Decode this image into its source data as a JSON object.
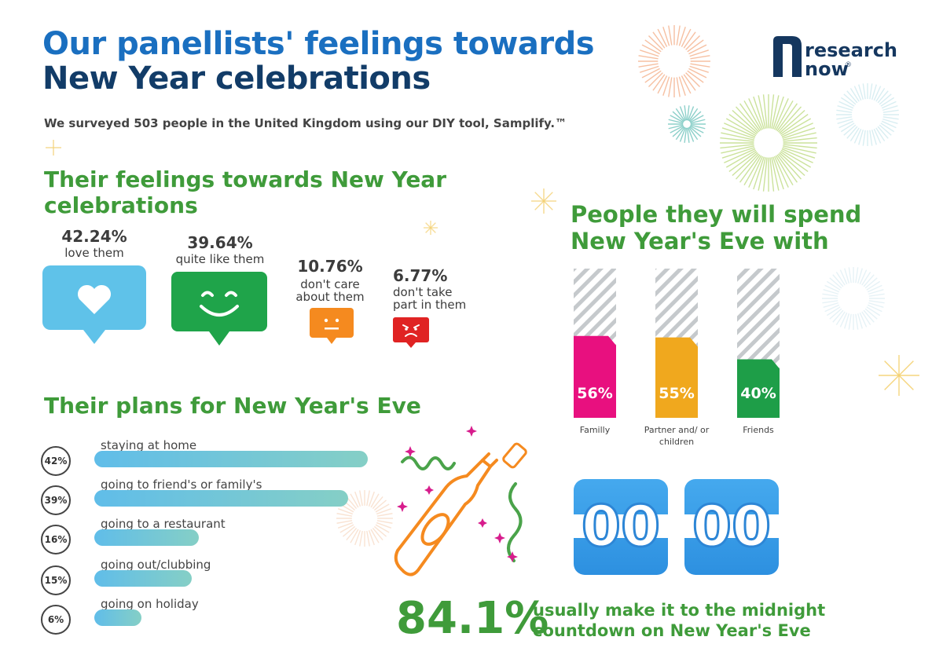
{
  "header": {
    "title_line1": "Our panellists' feelings towards",
    "title_line2": "New Year celebrations",
    "subtitle": "We surveyed 503 people in the United Kingdom using our DIY tool, Samplify.™"
  },
  "logo": {
    "word1": "research",
    "word2": "now",
    "mark": "®"
  },
  "feelings": {
    "heading": "Their feelings towards New Year celebrations",
    "items": [
      {
        "pct": "42.24%",
        "label": "love them",
        "icon": "heart-icon",
        "color": "#5fc2e9"
      },
      {
        "pct": "39.64%",
        "label": "quite like them",
        "icon": "smile-icon",
        "color": "#1fa44a"
      },
      {
        "pct": "10.76%",
        "label": "don't care about them",
        "icon": "neutral-face-icon",
        "color": "#f58a1f"
      },
      {
        "pct": "6.77%",
        "label": "don't take part in them",
        "icon": "angry-face-icon",
        "color": "#e02323"
      }
    ]
  },
  "plans": {
    "heading": "Their plans for New Year's Eve",
    "items": [
      {
        "pct_label": "42%",
        "value": 42,
        "label": "staying at home"
      },
      {
        "pct_label": "39%",
        "value": 39,
        "label": "going to friend's or family's"
      },
      {
        "pct_label": "16%",
        "value": 16,
        "label": "going to a restaurant"
      },
      {
        "pct_label": "15%",
        "value": 15,
        "label": "going out/clubbing"
      },
      {
        "pct_label": "6%",
        "value": 6,
        "label": "going on holiday"
      }
    ]
  },
  "company": {
    "heading": "People they will spend New Year's Eve with",
    "items": [
      {
        "pct_label": "56%",
        "value": 56,
        "label": "Familly",
        "color": "#e8107f"
      },
      {
        "pct_label": "55%",
        "value": 55,
        "label": "Partner and/ or children",
        "color": "#f0a81e"
      },
      {
        "pct_label": "40%",
        "value": 40,
        "label": "Friends",
        "color": "#1e9e48"
      }
    ]
  },
  "countdown": {
    "digits": [
      "00",
      "00"
    ],
    "stat": "84.1%",
    "text": "usually make it to the midnight countdown on New Year's Eve"
  },
  "chart_data": [
    {
      "type": "bar",
      "title": "Their feelings towards New Year celebrations",
      "categories": [
        "love them",
        "quite like them",
        "don't care about them",
        "don't take part in them"
      ],
      "values": [
        42.24,
        39.64,
        10.76,
        6.77
      ]
    },
    {
      "type": "bar",
      "title": "Their plans for New Year's Eve",
      "categories": [
        "staying at home",
        "going to friend's or family's",
        "going to a restaurant",
        "going out/clubbing",
        "going on holiday"
      ],
      "values": [
        42,
        39,
        16,
        15,
        6
      ]
    },
    {
      "type": "bar",
      "title": "People they will spend New Year's Eve with",
      "categories": [
        "Familly",
        "Partner and/ or children",
        "Friends"
      ],
      "values": [
        56,
        55,
        40
      ],
      "ylim": [
        0,
        100
      ]
    }
  ]
}
